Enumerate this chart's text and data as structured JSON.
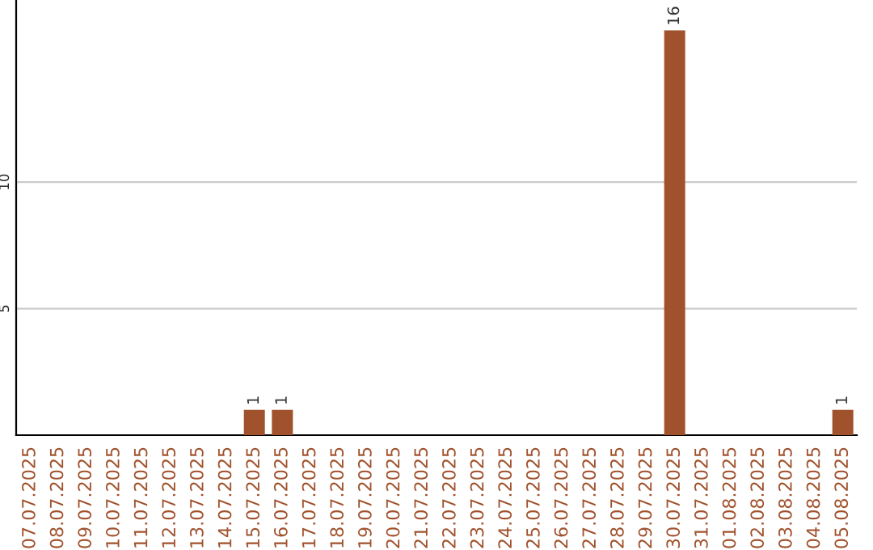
{
  "chart_data": {
    "type": "bar",
    "categories": [
      "07.07.2025",
      "08.07.2025",
      "09.07.2025",
      "10.07.2025",
      "11.07.2025",
      "12.07.2025",
      "13.07.2025",
      "14.07.2025",
      "15.07.2025",
      "16.07.2025",
      "17.07.2025",
      "18.07.2025",
      "19.07.2025",
      "20.07.2025",
      "21.07.2025",
      "22.07.2025",
      "23.07.2025",
      "24.07.2025",
      "25.07.2025",
      "26.07.2025",
      "27.07.2025",
      "28.07.2025",
      "29.07.2025",
      "30.07.2025",
      "31.07.2025",
      "01.08.2025",
      "02.08.2025",
      "03.08.2025",
      "04.08.2025",
      "05.08.2025"
    ],
    "values": [
      0,
      0,
      0,
      0,
      0,
      0,
      0,
      0,
      1,
      1,
      0,
      0,
      0,
      0,
      0,
      0,
      0,
      0,
      0,
      0,
      0,
      0,
      0,
      16,
      0,
      0,
      0,
      0,
      0,
      1
    ],
    "value_labels": [
      null,
      null,
      null,
      null,
      null,
      null,
      null,
      null,
      "1",
      "1",
      null,
      null,
      null,
      null,
      null,
      null,
      null,
      null,
      null,
      null,
      null,
      null,
      null,
      "16",
      null,
      null,
      null,
      null,
      null,
      "1"
    ],
    "color": "#a0522d",
    "ylim": [
      0,
      17.2
    ],
    "yticks": [
      5,
      10
    ],
    "grid": "y"
  }
}
